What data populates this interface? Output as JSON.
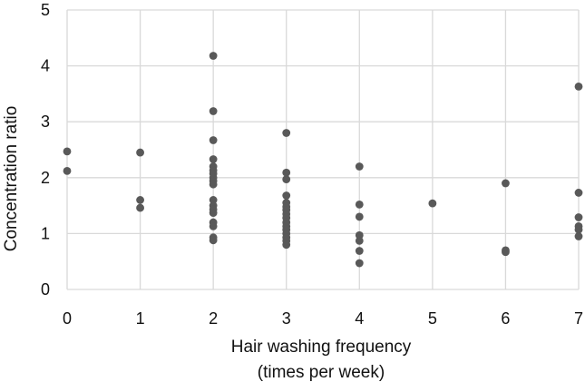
{
  "chart_data": {
    "type": "scatter",
    "title": "",
    "xlabel_lines": [
      "Hair washing frequency",
      "(times per week)"
    ],
    "ylabel": "Concentration ratio",
    "xlim": [
      0,
      7
    ],
    "ylim": [
      0,
      5
    ],
    "xticks": [
      0,
      1,
      2,
      3,
      4,
      5,
      6,
      7
    ],
    "yticks": [
      0,
      1,
      2,
      3,
      4,
      5
    ],
    "grid": true,
    "legend": "none",
    "colors": {
      "marker": "#595959",
      "grid": "#d9d9d9"
    },
    "points": [
      {
        "x": 0,
        "y": 2.47
      },
      {
        "x": 0,
        "y": 2.12
      },
      {
        "x": 1,
        "y": 2.45
      },
      {
        "x": 1,
        "y": 1.6
      },
      {
        "x": 1,
        "y": 1.46
      },
      {
        "x": 2,
        "y": 4.18
      },
      {
        "x": 2,
        "y": 3.19
      },
      {
        "x": 2,
        "y": 2.67
      },
      {
        "x": 2,
        "y": 2.33
      },
      {
        "x": 2,
        "y": 2.2
      },
      {
        "x": 2,
        "y": 2.13
      },
      {
        "x": 2,
        "y": 2.07
      },
      {
        "x": 2,
        "y": 2.0
      },
      {
        "x": 2,
        "y": 1.94
      },
      {
        "x": 2,
        "y": 1.88
      },
      {
        "x": 2,
        "y": 1.6
      },
      {
        "x": 2,
        "y": 1.5
      },
      {
        "x": 2,
        "y": 1.43
      },
      {
        "x": 2,
        "y": 1.37
      },
      {
        "x": 2,
        "y": 1.2
      },
      {
        "x": 2,
        "y": 1.13
      },
      {
        "x": 2,
        "y": 0.93
      },
      {
        "x": 2,
        "y": 0.88
      },
      {
        "x": 3,
        "y": 2.8
      },
      {
        "x": 3,
        "y": 2.09
      },
      {
        "x": 3,
        "y": 1.97
      },
      {
        "x": 3,
        "y": 1.68
      },
      {
        "x": 3,
        "y": 1.55
      },
      {
        "x": 3,
        "y": 1.48
      },
      {
        "x": 3,
        "y": 1.42
      },
      {
        "x": 3,
        "y": 1.35
      },
      {
        "x": 3,
        "y": 1.28
      },
      {
        "x": 3,
        "y": 1.2
      },
      {
        "x": 3,
        "y": 1.13
      },
      {
        "x": 3,
        "y": 1.07
      },
      {
        "x": 3,
        "y": 1.0
      },
      {
        "x": 3,
        "y": 0.93
      },
      {
        "x": 3,
        "y": 0.87
      },
      {
        "x": 3,
        "y": 0.8
      },
      {
        "x": 4,
        "y": 2.2
      },
      {
        "x": 4,
        "y": 1.52
      },
      {
        "x": 4,
        "y": 1.3
      },
      {
        "x": 4,
        "y": 0.97
      },
      {
        "x": 4,
        "y": 0.87
      },
      {
        "x": 4,
        "y": 0.69
      },
      {
        "x": 4,
        "y": 0.47
      },
      {
        "x": 5,
        "y": 1.54
      },
      {
        "x": 6,
        "y": 1.9
      },
      {
        "x": 6,
        "y": 0.7
      },
      {
        "x": 6,
        "y": 0.67
      },
      {
        "x": 7,
        "y": 3.63
      },
      {
        "x": 7,
        "y": 1.73
      },
      {
        "x": 7,
        "y": 1.29
      },
      {
        "x": 7,
        "y": 1.13
      },
      {
        "x": 7,
        "y": 1.07
      },
      {
        "x": 7,
        "y": 0.95
      }
    ]
  }
}
